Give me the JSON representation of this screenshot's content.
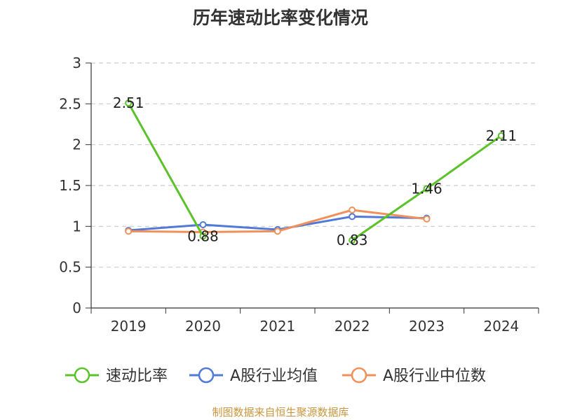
{
  "chart_data": {
    "type": "line",
    "title": "历年速动比率变化情况",
    "categories": [
      "2019",
      "2020",
      "2021",
      "2022",
      "2023",
      "2024"
    ],
    "ylim": [
      0,
      3
    ],
    "yticks": [
      0,
      0.5,
      1,
      1.5,
      2,
      2.5,
      3
    ],
    "ytick_labels": [
      "0",
      "0.5",
      "1",
      "1.5",
      "2",
      "2.5",
      "3"
    ],
    "grid": true,
    "legend_position": "bottom",
    "series": [
      {
        "name": "速动比率",
        "color": "#5bc22a",
        "values": [
          2.51,
          0.88,
          null,
          0.83,
          1.46,
          2.11
        ],
        "labels": [
          "2.51",
          "0.88",
          "",
          "0.83",
          "1.46",
          "2.11"
        ]
      },
      {
        "name": "A股行业均值",
        "color": "#5079d8",
        "values": [
          0.95,
          1.02,
          0.96,
          1.12,
          1.1,
          null
        ]
      },
      {
        "name": "A股行业中位数",
        "color": "#f0905a",
        "values": [
          0.94,
          0.93,
          0.94,
          1.2,
          1.09,
          null
        ]
      }
    ]
  },
  "source": "制图数据来自恒生聚源数据库"
}
